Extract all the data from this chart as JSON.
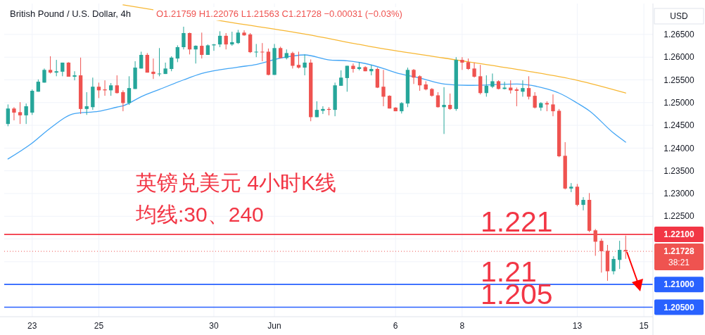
{
  "chart_data": {
    "type": "candlestick",
    "title": "British Pound / U.S. Dollar, 4h",
    "subtitle": "O1.21759 H1.22076 L1.21563 C1.21728 −0.00031 (−0.03%)",
    "ylabel": "USD",
    "categories": [
      null,
      null,
      null,
      null,
      "23",
      null,
      null,
      null,
      null,
      null,
      null,
      null,
      null,
      null,
      null,
      "25",
      null,
      null,
      null,
      null,
      null,
      null,
      null,
      null,
      null,
      null,
      null,
      null,
      null,
      null,
      null,
      null,
      null,
      null,
      "30",
      null,
      null,
      null,
      null,
      null,
      null,
      null,
      null,
      null,
      "Jun",
      null,
      null,
      null,
      null,
      null,
      null,
      null,
      null,
      null,
      null,
      null,
      null,
      null,
      null,
      null,
      null,
      null,
      null,
      null,
      "6",
      null,
      null,
      null,
      null,
      null,
      null,
      null,
      null,
      null,
      null,
      "8",
      null,
      null,
      null,
      null,
      null,
      null,
      null,
      null,
      null,
      null,
      null,
      null,
      null,
      null,
      null,
      null,
      null,
      null,
      "13",
      null,
      null,
      null,
      null,
      null,
      null,
      null,
      null,
      null,
      null,
      "15",
      null
    ],
    "ohlc": [
      [
        1.2453,
        1.2496,
        1.2448,
        1.2487
      ],
      [
        1.2487,
        1.249,
        1.2461,
        1.2478
      ],
      [
        1.2479,
        1.2501,
        1.2453,
        1.2472
      ],
      [
        1.2472,
        1.2498,
        1.2453,
        1.2492
      ],
      [
        1.2478,
        1.2529,
        1.2473,
        1.2526
      ],
      [
        1.2524,
        1.2551,
        1.2524,
        1.2546
      ],
      [
        1.2544,
        1.2575,
        1.2544,
        1.2572
      ],
      [
        1.2572,
        1.2602,
        1.2564,
        1.2566
      ],
      [
        1.2566,
        1.2594,
        1.2558,
        1.2569
      ],
      [
        1.2568,
        1.2588,
        1.2558,
        1.2588
      ],
      [
        1.2588,
        1.2589,
        1.2557,
        1.2557
      ],
      [
        1.2557,
        1.2569,
        1.2549,
        1.256
      ],
      [
        1.256,
        1.2599,
        1.2475,
        1.2486
      ],
      [
        1.2486,
        1.2523,
        1.2473,
        1.2492
      ],
      [
        1.249,
        1.2555,
        1.2484,
        1.2535
      ],
      [
        1.2535,
        1.2544,
        1.251,
        1.2527
      ],
      [
        1.2529,
        1.2549,
        1.2515,
        1.2527
      ],
      [
        1.2527,
        1.2543,
        1.2515,
        1.2538
      ],
      [
        1.2538,
        1.256,
        1.252,
        1.2521
      ],
      [
        1.2523,
        1.2527,
        1.2481,
        1.2499
      ],
      [
        1.2499,
        1.2558,
        1.2495,
        1.2532
      ],
      [
        1.253,
        1.2591,
        1.253,
        1.2577
      ],
      [
        1.2575,
        1.2612,
        1.2575,
        1.2605
      ],
      [
        1.2605,
        1.2609,
        1.2566,
        1.2566
      ],
      [
        1.2568,
        1.2597,
        1.2552,
        1.2563
      ],
      [
        1.2563,
        1.262,
        1.2558,
        1.2564
      ],
      [
        1.2563,
        1.2588,
        1.2563,
        1.2575
      ],
      [
        1.2574,
        1.2602,
        1.2569,
        1.2599
      ],
      [
        1.2597,
        1.2626,
        1.2589,
        1.2622
      ],
      [
        1.2622,
        1.2667,
        1.2617,
        1.2653
      ],
      [
        1.2653,
        1.2654,
        1.2606,
        1.2617
      ],
      [
        1.2617,
        1.2626,
        1.2586,
        1.2625
      ],
      [
        1.2625,
        1.2654,
        1.2597,
        1.2605
      ],
      [
        1.2605,
        1.2628,
        1.2605,
        1.2626
      ],
      [
        1.2626,
        1.2629,
        1.2614,
        1.2628
      ],
      [
        1.2628,
        1.2657,
        1.2622,
        1.2647
      ],
      [
        1.2647,
        1.2653,
        1.2617,
        1.2628
      ],
      [
        1.2628,
        1.2656,
        1.2625,
        1.2633
      ],
      [
        1.2631,
        1.266,
        1.2629,
        1.2654
      ],
      [
        1.2654,
        1.2659,
        1.2647,
        1.2648
      ],
      [
        1.265,
        1.2653,
        1.2609,
        1.2611
      ],
      [
        1.2611,
        1.2629,
        1.26,
        1.2612
      ],
      [
        1.2612,
        1.2631,
        1.2591,
        1.2611
      ],
      [
        1.2612,
        1.2619,
        1.256,
        1.2561
      ],
      [
        1.2561,
        1.2629,
        1.2561,
        1.262
      ],
      [
        1.262,
        1.2623,
        1.2598,
        1.2598
      ],
      [
        1.2598,
        1.2617,
        1.2595,
        1.2609
      ],
      [
        1.2609,
        1.2612,
        1.2575,
        1.2581
      ],
      [
        1.2583,
        1.2612,
        1.2575,
        1.2577
      ],
      [
        1.2577,
        1.2606,
        1.256,
        1.2588
      ],
      [
        1.2588,
        1.2595,
        1.2459,
        1.2468
      ],
      [
        1.2468,
        1.2503,
        1.2468,
        1.2484
      ],
      [
        1.2482,
        1.2492,
        1.2475,
        1.2486
      ],
      [
        1.2486,
        1.249,
        1.2472,
        1.2484
      ],
      [
        1.2484,
        1.2544,
        1.247,
        1.2538
      ],
      [
        1.2537,
        1.2571,
        1.2537,
        1.2555
      ],
      [
        1.2554,
        1.2581,
        1.2524,
        1.2581
      ],
      [
        1.2581,
        1.2586,
        1.2566,
        1.2574
      ],
      [
        1.2574,
        1.2589,
        1.2571,
        1.2578
      ],
      [
        1.2578,
        1.258,
        1.2569,
        1.2569
      ],
      [
        1.2569,
        1.2583,
        1.256,
        1.2574
      ],
      [
        1.2574,
        1.2577,
        1.2532,
        1.2533
      ],
      [
        1.2535,
        1.2572,
        1.2492,
        1.2513
      ],
      [
        1.2515,
        1.2516,
        1.2487,
        1.2487
      ],
      [
        1.2489,
        1.249,
        1.2481,
        1.2481
      ],
      [
        1.2481,
        1.2501,
        1.2476,
        1.2499
      ],
      [
        1.2498,
        1.2577,
        1.249,
        1.2572
      ],
      [
        1.2572,
        1.2574,
        1.2541,
        1.2555
      ],
      [
        1.2558,
        1.256,
        1.2526,
        1.2538
      ],
      [
        1.254,
        1.2547,
        1.2527,
        1.2529
      ],
      [
        1.253,
        1.2532,
        1.2513,
        1.2515
      ],
      [
        1.2516,
        1.2523,
        1.2489,
        1.249
      ],
      [
        1.249,
        1.2534,
        1.2431,
        1.2495
      ],
      [
        1.2495,
        1.252,
        1.2484,
        1.2486
      ],
      [
        1.2486,
        1.26,
        1.2482,
        1.2594
      ],
      [
        1.2594,
        1.26,
        1.2572,
        1.2588
      ],
      [
        1.2589,
        1.2597,
        1.2572,
        1.2574
      ],
      [
        1.2575,
        1.2588,
        1.2555,
        1.2557
      ],
      [
        1.2558,
        1.2583,
        1.2518,
        1.2521
      ],
      [
        1.2521,
        1.256,
        1.2513,
        1.2537
      ],
      [
        1.2535,
        1.2564,
        1.2532,
        1.2547
      ],
      [
        1.2547,
        1.2549,
        1.2529,
        1.253
      ],
      [
        1.253,
        1.2546,
        1.2529,
        1.2533
      ],
      [
        1.2533,
        1.2549,
        1.252,
        1.2527
      ],
      [
        1.2529,
        1.2533,
        1.2492,
        1.2526
      ],
      [
        1.2524,
        1.2549,
        1.2513,
        1.2532
      ],
      [
        1.2532,
        1.2558,
        1.2507,
        1.2513
      ],
      [
        1.2515,
        1.2523,
        1.2487,
        1.2489
      ],
      [
        1.2489,
        1.2501,
        1.2482,
        1.2499
      ],
      [
        1.2499,
        1.2503,
        1.2481,
        1.2496
      ],
      [
        1.2496,
        1.2518,
        1.247,
        1.2481
      ],
      [
        1.2482,
        1.2486,
        1.238,
        1.2382
      ],
      [
        1.2383,
        1.2413,
        1.2309,
        1.2311
      ],
      [
        1.2311,
        1.2323,
        1.2303,
        1.2315
      ],
      [
        1.2315,
        1.2321,
        1.2272,
        1.2275
      ],
      [
        1.2275,
        1.2292,
        1.2263,
        1.2286
      ],
      [
        1.2286,
        1.2301,
        1.2215,
        1.2218
      ],
      [
        1.2219,
        1.2222,
        1.2163,
        1.2194
      ],
      [
        1.2196,
        1.2201,
        1.2126,
        1.2173
      ],
      [
        1.2174,
        1.2187,
        1.2108,
        1.2129
      ],
      [
        1.2129,
        1.2162,
        1.2122,
        1.2156
      ],
      [
        1.2154,
        1.2196,
        1.2134,
        1.2176
      ],
      [
        1.21759,
        1.22076,
        1.21563,
        1.21728
      ],
      null,
      null,
      null,
      null
    ],
    "series": [
      {
        "type": "line",
        "color": "#42a5f5",
        "values": [
          1.2376,
          null,
          null,
          null,
          1.2411,
          null,
          null,
          1.2444,
          null,
          null,
          null,
          1.2476,
          null,
          null,
          null,
          1.2481,
          null,
          null,
          1.249,
          1.2493,
          null,
          null,
          1.2513,
          null,
          null,
          1.2529,
          null,
          null,
          null,
          1.255,
          null,
          null,
          1.2564,
          null,
          null,
          null,
          null,
          null,
          1.2578,
          null,
          null,
          1.2584,
          null,
          null,
          null,
          1.2598,
          null,
          null,
          null,
          1.2605,
          null,
          null,
          null,
          1.2594,
          null,
          null,
          1.2592,
          null,
          null,
          1.2586,
          null,
          null,
          1.2575,
          null,
          1.2566,
          null,
          null,
          null,
          1.2554,
          null,
          null,
          null,
          1.2541,
          null,
          null,
          null,
          1.2538,
          null,
          null,
          null,
          null,
          null,
          null,
          null,
          1.2541,
          null,
          null,
          null,
          null,
          1.253,
          null,
          1.2521,
          null,
          null,
          1.2499,
          null,
          1.2482,
          null,
          null,
          null,
          1.2433,
          null,
          1.2413,
          null,
          null,
          null,
          null
        ]
      },
      {
        "type": "line",
        "color": "#f7b733",
        "values": [
          null,
          null,
          null,
          null,
          null,
          null,
          null,
          null,
          null,
          null,
          null,
          null,
          null,
          null,
          null,
          null,
          null,
          null,
          null,
          1.2715,
          null,
          null,
          null,
          null,
          null,
          null,
          null,
          null,
          null,
          null,
          null,
          null,
          null,
          null,
          null,
          null,
          null,
          1.2676,
          null,
          null,
          null,
          null,
          null,
          null,
          null,
          null,
          null,
          null,
          null,
          1.2651,
          null,
          null,
          null,
          null,
          null,
          null,
          null,
          null,
          null,
          null,
          1.2623,
          null,
          null,
          null,
          null,
          null,
          null,
          null,
          null,
          null,
          null,
          null,
          1.2598,
          null,
          null,
          null,
          null,
          null,
          null,
          null,
          null,
          null,
          null,
          null,
          null,
          1.2571,
          null,
          null,
          null,
          null,
          null,
          null,
          null,
          null,
          1.2549,
          null,
          null,
          null,
          null,
          null,
          null,
          null,
          1.2521,
          null,
          null,
          null,
          null
        ]
      }
    ],
    "ylim": [
      1.2029,
      1.2718
    ],
    "yticks": [
      {
        "value": 1.215,
        "label": null
      },
      {
        "value": 1.22,
        "label": null
      },
      {
        "value": 1.225,
        "label": "1.22500"
      },
      {
        "value": 1.23,
        "label": "1.23000"
      },
      {
        "value": 1.235,
        "label": "1.23500"
      },
      {
        "value": 1.24,
        "label": "1.24000"
      },
      {
        "value": 1.245,
        "label": "1.24500"
      },
      {
        "value": 1.25,
        "label": "1.25000"
      },
      {
        "value": 1.255,
        "label": "1.25500"
      },
      {
        "value": 1.26,
        "label": "1.26000"
      },
      {
        "value": 1.265,
        "label": "1.26500"
      }
    ],
    "grid": true,
    "ref_lines": [
      {
        "axis": "y",
        "value": 1.221,
        "label": "1.22100",
        "color": "#f23645",
        "line_style": "solid"
      },
      {
        "axis": "y",
        "value": 1.21728,
        "label": "1.21728\n38:21",
        "color": "#ef5350",
        "line_style": "dotted"
      },
      {
        "axis": "y",
        "value": 1.21,
        "label": "1.21000",
        "color": "#2962ff",
        "line_style": "solid"
      },
      {
        "axis": "y",
        "value": 1.205,
        "label": "1.20500",
        "color": "#2962ff",
        "line_style": "solid"
      }
    ],
    "annotations": [
      "英镑兑美元 4小时K线",
      "均线:30、240",
      {
        "text": "1.221",
        "y": 1.221
      },
      {
        "text": "1.21",
        "y": 1.21
      },
      {
        "text": "1.205",
        "y": 1.205
      }
    ]
  }
}
